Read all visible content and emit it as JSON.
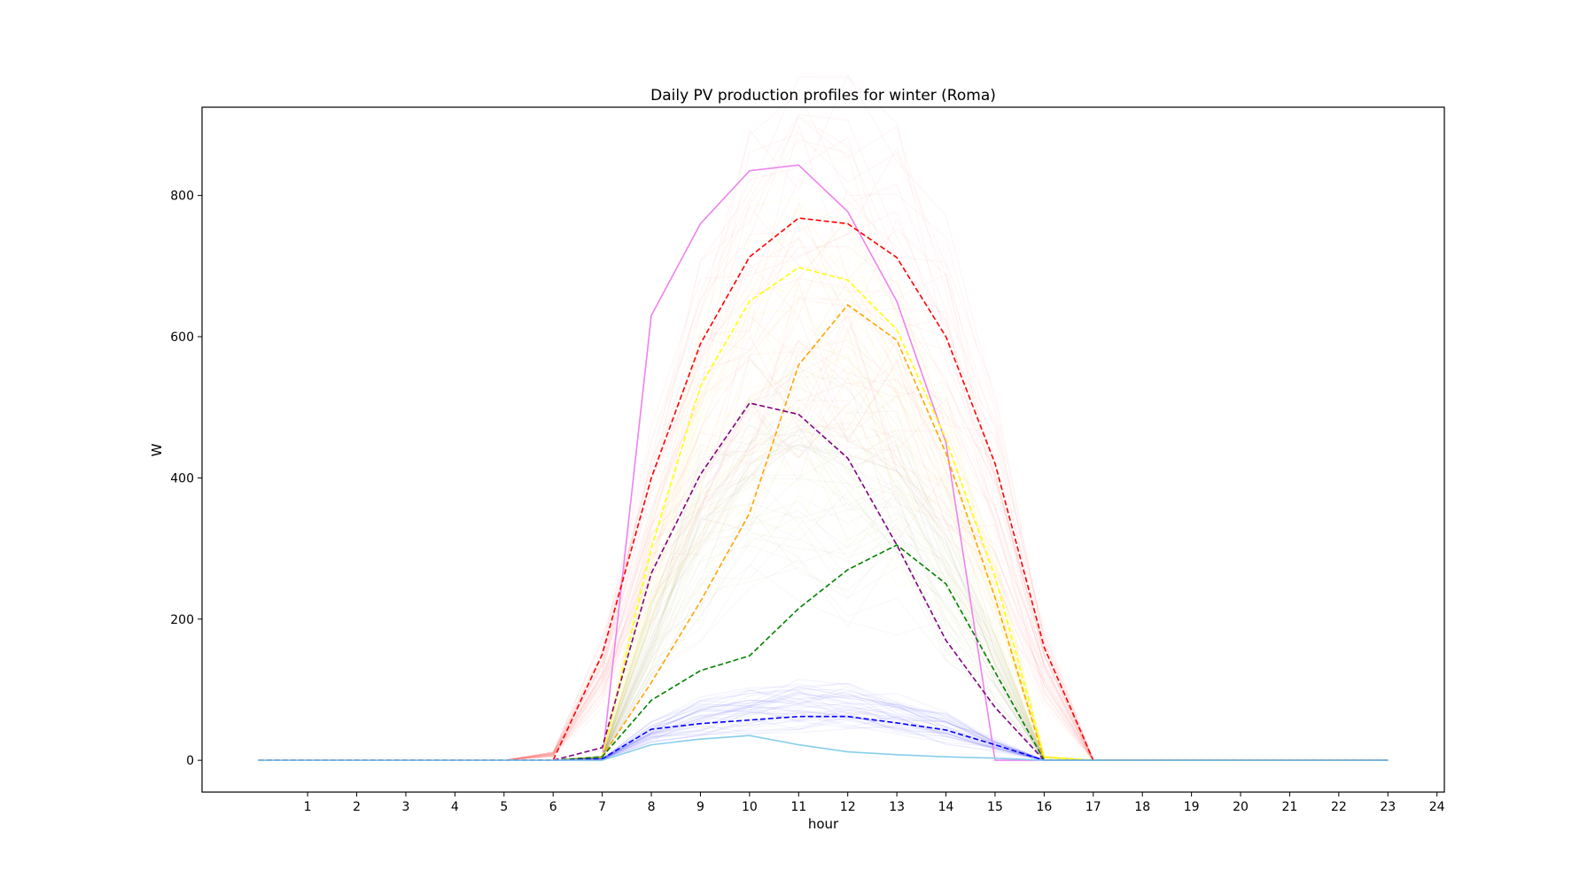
{
  "chart_data": {
    "type": "line",
    "title": "Daily PV production profiles for winter (Roma)",
    "xlabel": "hour",
    "ylabel": "W",
    "xlim": [
      -1.15,
      24.15
    ],
    "ylim": [
      -45,
      925
    ],
    "x_ticks": [
      1,
      2,
      3,
      4,
      5,
      6,
      7,
      8,
      9,
      10,
      11,
      12,
      13,
      14,
      15,
      16,
      17,
      18,
      19,
      20,
      21,
      22,
      23,
      24
    ],
    "y_ticks": [
      0,
      200,
      400,
      600,
      800
    ],
    "grid": false,
    "legend": "none",
    "x": [
      0,
      1,
      2,
      3,
      4,
      5,
      6,
      7,
      8,
      9,
      10,
      11,
      12,
      13,
      14,
      15,
      16,
      17,
      18,
      19,
      20,
      21,
      22,
      23
    ],
    "series": [
      {
        "color": "#ee82ee",
        "style": "solid",
        "values": [
          0,
          0,
          0,
          0,
          0,
          0,
          0,
          0,
          630,
          760,
          835,
          843,
          777,
          650,
          450,
          0,
          0,
          0,
          0,
          0,
          0,
          0,
          0,
          0
        ]
      },
      {
        "color": "#ff0000",
        "style": "dashed",
        "values": [
          0,
          0,
          0,
          0,
          0,
          0,
          0,
          150,
          400,
          590,
          713,
          768,
          760,
          712,
          600,
          420,
          160,
          0,
          0,
          0,
          0,
          0,
          0,
          0
        ]
      },
      {
        "color": "#ffff00",
        "style": "dashed",
        "values": [
          0,
          0,
          0,
          0,
          0,
          0,
          0,
          5,
          300,
          530,
          650,
          698,
          680,
          610,
          455,
          260,
          5,
          0,
          0,
          0,
          0,
          0,
          0,
          0
        ]
      },
      {
        "color": "#ffa500",
        "style": "dashed",
        "values": [
          0,
          0,
          0,
          0,
          0,
          0,
          0,
          5,
          110,
          225,
          350,
          560,
          645,
          595,
          435,
          230,
          0,
          0,
          0,
          0,
          0,
          0,
          0,
          0
        ]
      },
      {
        "color": "#800080",
        "style": "dashed",
        "values": [
          0,
          0,
          0,
          0,
          0,
          0,
          0,
          18,
          265,
          405,
          506,
          490,
          428,
          305,
          170,
          75,
          0,
          0,
          0,
          0,
          0,
          0,
          0,
          0
        ]
      },
      {
        "color": "#008000",
        "style": "dashed",
        "values": [
          0,
          0,
          0,
          0,
          0,
          0,
          0,
          5,
          85,
          127,
          148,
          215,
          270,
          305,
          250,
          125,
          0,
          0,
          0,
          0,
          0,
          0,
          0,
          0
        ]
      },
      {
        "color": "#0000ff",
        "style": "dashed",
        "values": [
          0,
          0,
          0,
          0,
          0,
          0,
          0,
          2,
          44,
          52,
          57,
          62,
          62,
          53,
          43,
          22,
          0,
          0,
          0,
          0,
          0,
          0,
          0,
          0
        ]
      },
      {
        "color": "#87ceeb",
        "style": "solid",
        "values": [
          0,
          0,
          0,
          0,
          0,
          0,
          0,
          0,
          22,
          30,
          35,
          22,
          12,
          8,
          5,
          3,
          0,
          0,
          0,
          0,
          0,
          0,
          0,
          0
        ]
      }
    ],
    "background_profiles": [
      {
        "color": "#ff6a6a",
        "base": [
          0,
          0,
          0,
          0,
          0,
          0,
          10,
          140,
          380,
          570,
          700,
          760,
          750,
          700,
          590,
          410,
          150,
          0,
          0,
          0,
          0,
          0,
          0,
          0
        ]
      },
      {
        "color": "#f0e040",
        "base": [
          0,
          0,
          0,
          0,
          0,
          0,
          0,
          5,
          290,
          510,
          635,
          690,
          675,
          600,
          445,
          250,
          5,
          0,
          0,
          0,
          0,
          0,
          0,
          0
        ]
      },
      {
        "color": "#9aa070",
        "base": [
          0,
          0,
          0,
          0,
          0,
          0,
          0,
          5,
          180,
          360,
          460,
          480,
          470,
          420,
          300,
          150,
          0,
          0,
          0,
          0,
          0,
          0,
          0,
          0
        ]
      },
      {
        "color": "#3a3aff",
        "base": [
          0,
          0,
          0,
          0,
          0,
          0,
          0,
          2,
          45,
          70,
          85,
          90,
          88,
          75,
          55,
          25,
          0,
          0,
          0,
          0,
          0,
          0,
          0,
          0
        ]
      }
    ]
  }
}
